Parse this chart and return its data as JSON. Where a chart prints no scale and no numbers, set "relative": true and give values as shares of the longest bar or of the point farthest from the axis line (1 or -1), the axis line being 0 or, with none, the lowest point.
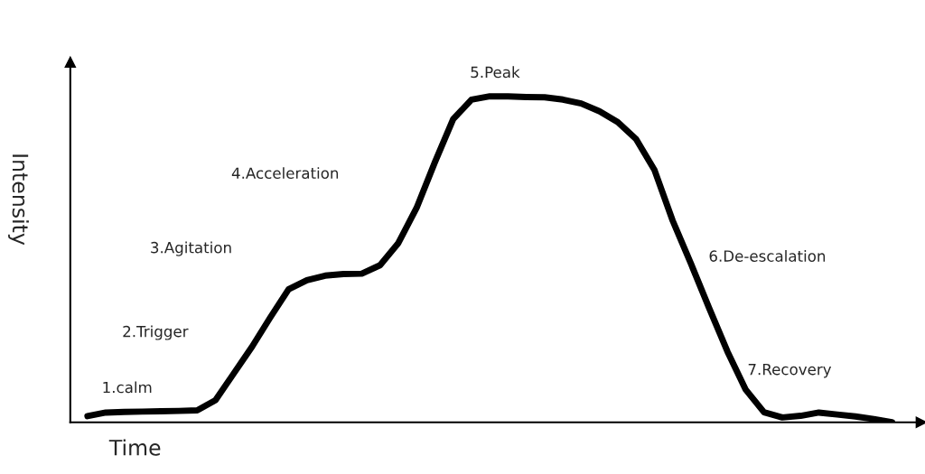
{
  "chart_data": {
    "type": "line",
    "relative": true,
    "xlabel": "Time",
    "ylabel": "Intensity",
    "color": "#000000",
    "line_style": "solid",
    "categories": [
      null,
      null,
      null,
      null,
      null,
      null,
      null,
      null,
      null,
      null,
      null,
      null,
      null,
      null,
      null,
      null,
      null,
      null,
      null,
      null,
      null,
      null,
      null,
      null,
      null,
      null,
      null,
      null,
      null,
      null,
      null,
      null,
      null,
      null,
      null,
      null,
      null,
      null,
      null,
      null,
      null,
      null,
      null,
      null,
      null
    ],
    "values": [
      0.019,
      0.03,
      0.032,
      0.033,
      0.034,
      0.035,
      0.037,
      0.068,
      0.15,
      0.232,
      0.322,
      0.408,
      0.436,
      0.45,
      0.455,
      0.456,
      0.482,
      0.55,
      0.658,
      0.798,
      0.93,
      0.99,
      1.0,
      1.0,
      0.998,
      0.997,
      0.99,
      0.978,
      0.954,
      0.921,
      0.869,
      0.775,
      0.619,
      0.487,
      0.35,
      0.217,
      0.1,
      0.031,
      0.015,
      0.02,
      0.03,
      0.024,
      0.018,
      0.01,
      0.0
    ],
    "annotations": [
      "1.calm",
      "2.Trigger",
      "3.Agitation",
      "4.Acceleration",
      "5.Peak",
      "6.De-escalation",
      "7.Recovery"
    ]
  }
}
